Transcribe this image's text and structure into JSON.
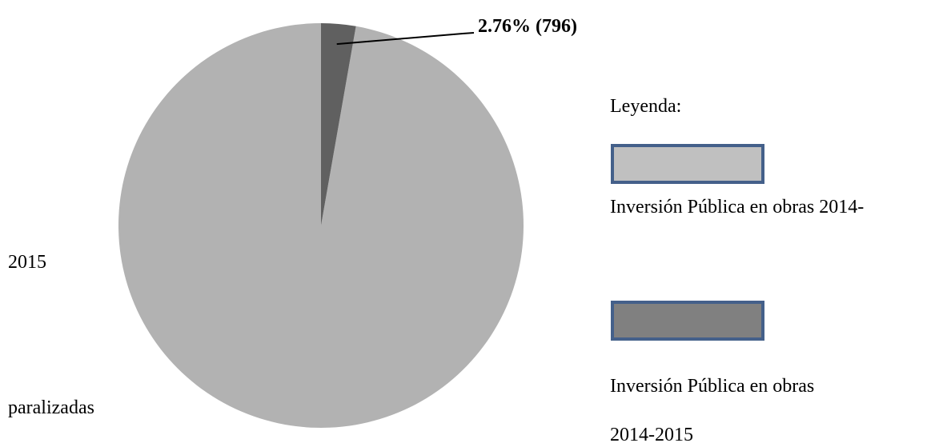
{
  "chart_data": {
    "type": "pie",
    "categories": [
      [
        "Inversión Pública en obras 2014-",
        "2015"
      ],
      [
        "Inversión Pública en obras",
        "2014-2015",
        "paralizadas"
      ]
    ],
    "values": [
      97.24,
      2.76
    ],
    "value_labels": [
      null,
      "2.76% (796)"
    ],
    "colors": [
      "#b2b2b2",
      "#606060"
    ],
    "legend_title": "Leyenda:",
    "legend_colors": [
      "#c0c0c0",
      "#808080"
    ]
  }
}
